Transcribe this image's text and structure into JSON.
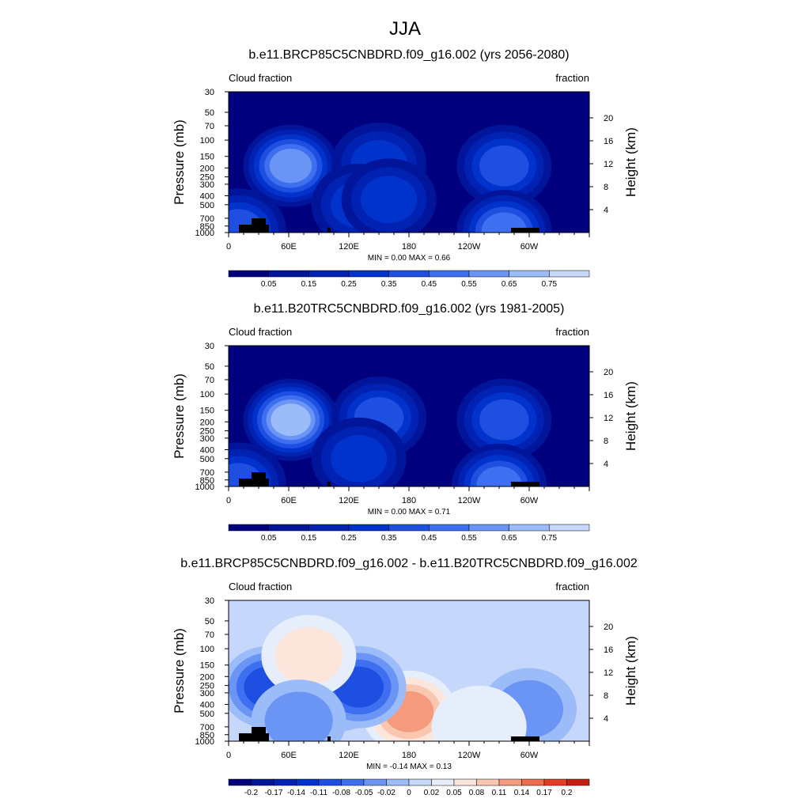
{
  "page_title": "JJA",
  "chart_data": [
    {
      "type": "heatmap",
      "title": "b.e11.BRCP85C5CNBDRD.f09_g16.002 (yrs 2056-2080)",
      "left_label": "Cloud fraction",
      "right_label": "fraction",
      "ylabel": "Pressure (mb)",
      "y2label": "Height (km)",
      "x_ticks": [
        "0",
        "60E",
        "120E",
        "180",
        "120W",
        "60W"
      ],
      "y_ticks": [
        "30",
        "50",
        "70",
        "100",
        "150",
        "200",
        "250",
        "300",
        "400",
        "500",
        "700",
        "850",
        "1000"
      ],
      "y2_ticks": [
        "20",
        "16",
        "12",
        "8",
        "4"
      ],
      "stats": "MIN =   0.00  MAX =   0.66",
      "min": 0.0,
      "max": 0.66,
      "colorbar_ticks": [
        "0.05",
        "0.15",
        "0.25",
        "0.35",
        "0.45",
        "0.55",
        "0.65",
        "0.75"
      ],
      "colors": [
        "#00007f",
        "#001599",
        "#0022b3",
        "#0033cc",
        "#1f4fe0",
        "#3d6ff0",
        "#6a95f5",
        "#9bbcf8",
        "#c5d8fb",
        "#e6eefc",
        "#fce6dc",
        "#f9c6b0",
        "#f59a7c",
        "#f06b4c",
        "#e03d22",
        "#c41f10",
        "#a01008",
        "#7d0000"
      ],
      "blobs": [
        {
          "lon": 330,
          "p": 500,
          "value": 0.03
        },
        {
          "lon": 205,
          "p": 580,
          "value": 0.03
        },
        {
          "lon": 62,
          "p": 190,
          "value": 0.62
        },
        {
          "lon": 150,
          "p": 180,
          "value": 0.32
        },
        {
          "lon": 130,
          "p": 500,
          "value": 0.26
        },
        {
          "lon": 160,
          "p": 440,
          "value": 0.25
        },
        {
          "lon": 275,
          "p": 190,
          "value": 0.42
        },
        {
          "lon": 275,
          "p": 960,
          "value": 0.45
        },
        {
          "lon": 10,
          "p": 930,
          "value": 0.42
        }
      ]
    },
    {
      "type": "heatmap",
      "title": "b.e11.B20TRC5CNBDRD.f09_g16.002 (yrs 1981-2005)",
      "left_label": "Cloud fraction",
      "right_label": "fraction",
      "ylabel": "Pressure (mb)",
      "y2label": "Height (km)",
      "x_ticks": [
        "0",
        "60E",
        "120E",
        "180",
        "120W",
        "60W"
      ],
      "y_ticks": [
        "30",
        "50",
        "70",
        "100",
        "150",
        "200",
        "250",
        "300",
        "400",
        "500",
        "700",
        "850",
        "1000"
      ],
      "y2_ticks": [
        "20",
        "16",
        "12",
        "8",
        "4"
      ],
      "stats": "MIN =   0.00  MAX =   0.71",
      "min": 0.0,
      "max": 0.71,
      "colorbar_ticks": [
        "0.05",
        "0.15",
        "0.25",
        "0.35",
        "0.45",
        "0.55",
        "0.65",
        "0.75"
      ],
      "colors": [
        "#00007f",
        "#001599",
        "#0022b3",
        "#0033cc",
        "#1f4fe0",
        "#3d6ff0",
        "#6a95f5",
        "#9bbcf8",
        "#c5d8fb",
        "#e6eefc",
        "#fce6dc",
        "#f9c6b0",
        "#f59a7c",
        "#f06b4c",
        "#e03d22",
        "#c41f10",
        "#a01008",
        "#7d0000"
      ],
      "blobs": [
        {
          "lon": 205,
          "p": 520,
          "value": 0.02
        },
        {
          "lon": 330,
          "p": 500,
          "value": 0.03
        },
        {
          "lon": 62,
          "p": 190,
          "value": 0.68
        },
        {
          "lon": 150,
          "p": 180,
          "value": 0.36
        },
        {
          "lon": 130,
          "p": 500,
          "value": 0.3
        },
        {
          "lon": 275,
          "p": 190,
          "value": 0.42
        },
        {
          "lon": 270,
          "p": 960,
          "value": 0.45
        },
        {
          "lon": 10,
          "p": 930,
          "value": 0.42
        }
      ]
    },
    {
      "type": "heatmap",
      "title": "b.e11.BRCP85C5CNBDRD.f09_g16.002 - b.e11.B20TRC5CNBDRD.f09_g16.002",
      "left_label": "Cloud fraction",
      "right_label": "fraction",
      "ylabel": "Pressure (mb)",
      "y2label": "Height (km)",
      "x_ticks": [
        "0",
        "60E",
        "120E",
        "180",
        "120W",
        "60W"
      ],
      "y_ticks": [
        "30",
        "50",
        "70",
        "100",
        "150",
        "200",
        "250",
        "300",
        "400",
        "500",
        "700",
        "850",
        "1000"
      ],
      "y2_ticks": [
        "20",
        "16",
        "12",
        "8",
        "4"
      ],
      "stats": "MIN =  -0.14  MAX =   0.13",
      "min": -0.14,
      "max": 0.13,
      "colorbar_ticks": [
        "-0.2",
        "-0.17",
        "-0.14",
        "-0.11",
        "-0.08",
        "-0.05",
        "-0.02",
        "0",
        "0.02",
        "0.05",
        "0.08",
        "0.11",
        "0.14",
        "0.17",
        "0.2"
      ],
      "colors": [
        "#00007f",
        "#001599",
        "#0022b3",
        "#0033cc",
        "#1f4fe0",
        "#3d6ff0",
        "#6a95f5",
        "#9bbcf8",
        "#c5d8fb",
        "#e6eefc",
        "#fce6dc",
        "#f9c6b0",
        "#f59a7c",
        "#f06b4c",
        "#e03d22",
        "#c41f10",
        "#a01008",
        "#7d0000"
      ],
      "blobs": [
        {
          "lon": 180,
          "p": 480,
          "value": 0.13
        },
        {
          "lon": 40,
          "p": 260,
          "value": -0.1
        },
        {
          "lon": 110,
          "p": 280,
          "value": -0.11
        },
        {
          "lon": 130,
          "p": 260,
          "value": -0.1
        },
        {
          "lon": 80,
          "p": 120,
          "value": 0.05
        },
        {
          "lon": 300,
          "p": 450,
          "value": -0.03
        },
        {
          "lon": 250,
          "p": 700,
          "value": 0.03
        },
        {
          "lon": 70,
          "p": 600,
          "value": -0.04
        }
      ]
    }
  ]
}
